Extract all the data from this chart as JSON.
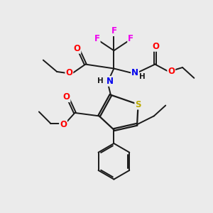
{
  "background_color": "#ebebeb",
  "bond_color": "#1a1a1a",
  "colors": {
    "O": "#ff0000",
    "N": "#0000ee",
    "S": "#bbaa00",
    "F": "#ee00ee",
    "C": "#1a1a1a",
    "H": "#1a1a1a"
  },
  "figsize": [
    3.0,
    3.0
  ],
  "dpi": 100
}
